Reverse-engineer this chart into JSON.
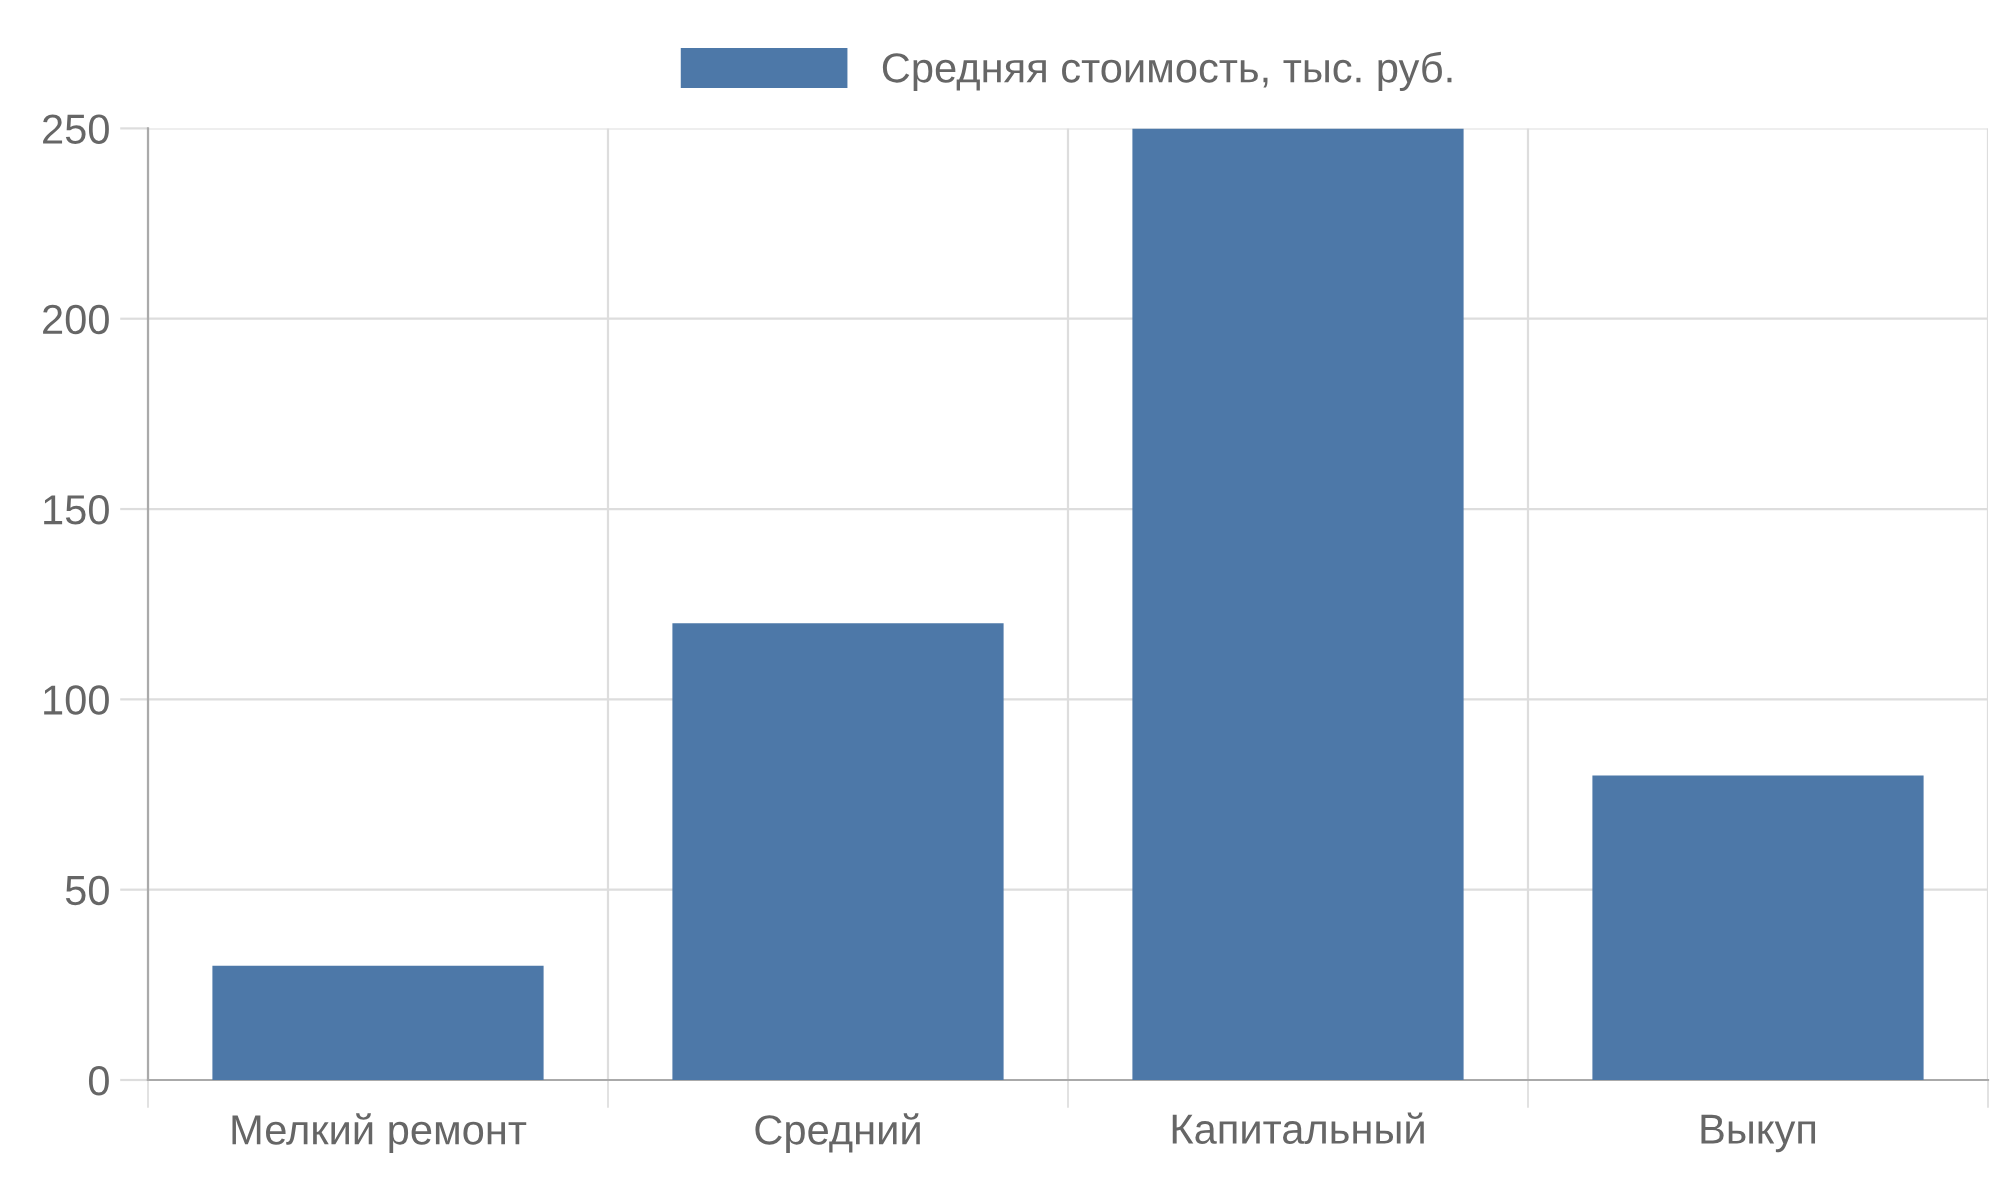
{
  "chart_data": {
    "type": "bar",
    "categories": [
      "Мелкий ремонт",
      "Средний",
      "Капитальный",
      "Выкуп"
    ],
    "series": [
      {
        "name": "Средняя стоимость, тыс. руб.",
        "color": "#4d78a8",
        "values": [
          30,
          120,
          250,
          80
        ]
      }
    ],
    "ylim": [
      0,
      250
    ],
    "yticks": [
      0,
      50,
      100,
      150,
      200,
      250
    ],
    "grid": true,
    "legend": "top"
  }
}
